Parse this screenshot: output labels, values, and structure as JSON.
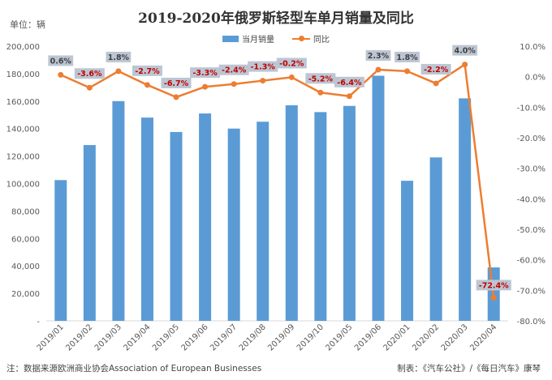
{
  "title": "2019-2020年俄罗斯轻型车单月销量及同比",
  "unit_label": "单位：辆",
  "footnote_left": "注：数据来源欧洲商业协会Association of European Businesses",
  "footnote_right": "制表：《汽车公社》/《每日汽车》康琴",
  "colors": {
    "bar": "#5b9bd5",
    "line": "#ed7d31",
    "label_neg": "#c00000",
    "label_pos": "#404040",
    "label_box": "#bcc6d3"
  },
  "chart_data": {
    "type": "bar",
    "categories": [
      "2019/01",
      "2019/02",
      "2019/03",
      "2019/04",
      "2019/05",
      "2019/06",
      "2019/07",
      "2019/08",
      "2019/09",
      "2019/10",
      "2019/05",
      "2019/06",
      "2020/01",
      "2020/02",
      "2020/03",
      "2020/04"
    ],
    "series": [
      {
        "name": "当月销量",
        "type": "bar",
        "axis": "left",
        "values": [
          102500,
          128000,
          160000,
          148000,
          137500,
          151000,
          140000,
          145000,
          157000,
          152000,
          156500,
          178500,
          102000,
          119000,
          162000,
          38900
        ]
      },
      {
        "name": "同比",
        "type": "line",
        "axis": "right",
        "values": [
          0.6,
          -3.6,
          1.8,
          -2.7,
          -6.7,
          -3.3,
          -2.4,
          -1.3,
          -0.2,
          -5.2,
          -6.4,
          2.3,
          1.8,
          -2.2,
          4.0,
          -72.4
        ],
        "labels": [
          "0.6%",
          "-3.6%",
          "1.8%",
          "-2.7%",
          "-6.7%",
          "-3.3%",
          "-2.4%",
          "-1.3%",
          "-0.2%",
          "-5.2%",
          "-6.4%",
          "2.3%",
          "1.8%",
          "-2.2%",
          "4.0%",
          "-72.4%"
        ]
      }
    ],
    "y_left": {
      "min": 0,
      "max": 200000,
      "step": 20000,
      "ticks": [
        "-",
        "20,000",
        "40,000",
        "60,000",
        "80,000",
        "100,000",
        "120,000",
        "140,000",
        "160,000",
        "180,000",
        "200,000"
      ]
    },
    "y_right": {
      "min": -80,
      "max": 10,
      "step": 10,
      "ticks": [
        "-80.0%",
        "-70.0%",
        "-60.0%",
        "-50.0%",
        "-40.0%",
        "-30.0%",
        "-20.0%",
        "-10.0%",
        "0.0%",
        "10.0%"
      ]
    },
    "legend_position": "top-center",
    "grid": false
  }
}
